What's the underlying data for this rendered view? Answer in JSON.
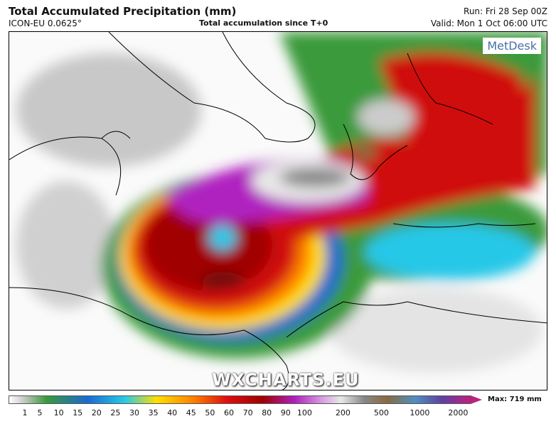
{
  "header": {
    "title": "Total Accumulated Precipitation (mm)",
    "model": "ICON-EU 0.0625°",
    "subtitle": "Total accumulation since T+0",
    "run": "Run: Fri 28 Sep 00Z",
    "valid": "Valid: Mon 1 Oct 06:00 UTC"
  },
  "logo": "MetDesk",
  "watermark": "WXCHARTS.EU",
  "legend": {
    "ticks": [
      "1",
      "5",
      "10",
      "15",
      "20",
      "25",
      "30",
      "35",
      "40",
      "45",
      "50",
      "60",
      "70",
      "80",
      "90",
      "100",
      "200",
      "500",
      "1000",
      "2000"
    ],
    "max": "Max: 719 mm"
  }
}
